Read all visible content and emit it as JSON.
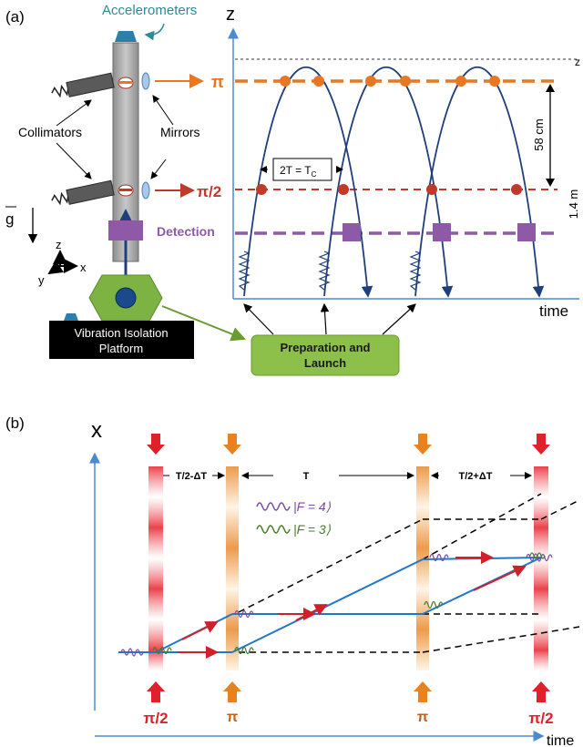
{
  "panel_a": {
    "label": "(a)",
    "accelerometers": "Accelerometers",
    "collimators": "Collimators",
    "mirrors": "Mirrors",
    "gravity": "g",
    "detection": "Detection",
    "axis_z": "z",
    "axis_y": "y",
    "axis_x": "x",
    "platform_line1": "Vibration Isolation",
    "platform_line2": "Platform",
    "prep_line1": "Preparation and",
    "prep_line2": "Launch",
    "pulse_pi": "π",
    "pulse_pi2": "π/2",
    "plot_z_label": "z",
    "plot_time_label": "time",
    "top_right_cut": "z",
    "dim_58": "58 cm",
    "dim_14": "1.4 m",
    "tc_label": "2T = T",
    "tc_sub": "C",
    "colors": {
      "pi": "#e87722",
      "pi2": "#c0392b",
      "detection": "#8e5aa8",
      "trajectory": "#1f3f7a",
      "prep": "#7cb342"
    }
  },
  "panel_b": {
    "label": "(b)",
    "axis_x": "x",
    "axis_time": "time",
    "seg1": "T/2-ΔT",
    "seg2": "T",
    "seg3": "T/2+ΔT",
    "legend_f4": "|F = 4⟩",
    "legend_f3": "|F = 3⟩",
    "pulses_bottom": [
      "π/2",
      "π",
      "π",
      "π/2"
    ],
    "colors": {
      "beam_red": "#e0202a",
      "beam_orange": "#e8821e",
      "path_blue": "#1f78c8",
      "path_red": "#d0202a",
      "f4": "#7b4aa0",
      "f3": "#4a7a2a"
    }
  }
}
